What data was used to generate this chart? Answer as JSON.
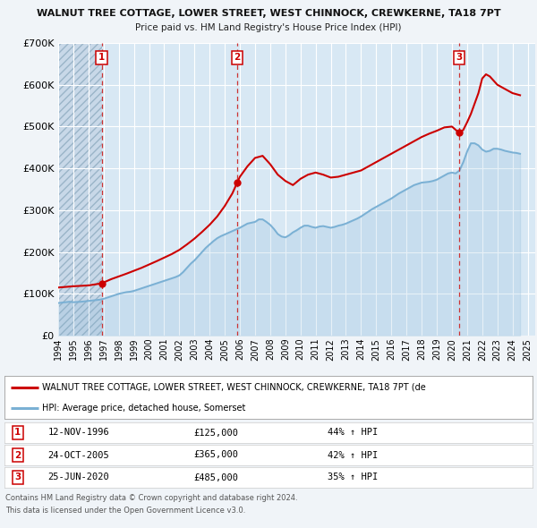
{
  "title_line1": "WALNUT TREE COTTAGE, LOWER STREET, WEST CHINNOCK, CREWKERNE, TA18 7PT",
  "title_line2": "Price paid vs. HM Land Registry's House Price Index (HPI)",
  "bg_color": "#f0f4f8",
  "plot_bg_color": "#d8e8f4",
  "grid_color": "#ffffff",
  "hatch_bg_color": "#c8d8e8",
  "red_line_color": "#cc0000",
  "blue_line_color": "#7ab0d4",
  "sale_marker_color": "#cc0000",
  "xmin": 1994.0,
  "xmax": 2025.5,
  "ymin": 0,
  "ymax": 700000,
  "yticks": [
    0,
    100000,
    200000,
    300000,
    400000,
    500000,
    600000,
    700000
  ],
  "ytick_labels": [
    "£0",
    "£100K",
    "£200K",
    "£300K",
    "£400K",
    "£500K",
    "£600K",
    "£700K"
  ],
  "xtick_years": [
    1994,
    1995,
    1996,
    1997,
    1998,
    1999,
    2000,
    2001,
    2002,
    2003,
    2004,
    2005,
    2006,
    2007,
    2008,
    2009,
    2010,
    2011,
    2012,
    2013,
    2014,
    2015,
    2016,
    2017,
    2018,
    2019,
    2020,
    2021,
    2022,
    2023,
    2024,
    2025
  ],
  "sales": [
    {
      "num": 1,
      "date": "12-NOV-1996",
      "year": 1996.87,
      "price": 125000,
      "pct": "44%",
      "direction": "↑"
    },
    {
      "num": 2,
      "date": "24-OCT-2005",
      "year": 2005.81,
      "price": 365000,
      "pct": "42%",
      "direction": "↑"
    },
    {
      "num": 3,
      "date": "25-JUN-2020",
      "year": 2020.48,
      "price": 485000,
      "pct": "35%",
      "direction": "↑"
    }
  ],
  "legend_label_red": "WALNUT TREE COTTAGE, LOWER STREET, WEST CHINNOCK, CREWKERNE, TA18 7PT (de",
  "legend_label_blue": "HPI: Average price, detached house, Somerset",
  "footer_line1": "Contains HM Land Registry data © Crown copyright and database right 2024.",
  "footer_line2": "This data is licensed under the Open Government Licence v3.0.",
  "hpi_data": {
    "years": [
      1994.0,
      1994.25,
      1994.5,
      1994.75,
      1995.0,
      1995.25,
      1995.5,
      1995.75,
      1996.0,
      1996.25,
      1996.5,
      1996.75,
      1997.0,
      1997.25,
      1997.5,
      1997.75,
      1998.0,
      1998.25,
      1998.5,
      1998.75,
      1999.0,
      1999.25,
      1999.5,
      1999.75,
      2000.0,
      2000.25,
      2000.5,
      2000.75,
      2001.0,
      2001.25,
      2001.5,
      2001.75,
      2002.0,
      2002.25,
      2002.5,
      2002.75,
      2003.0,
      2003.25,
      2003.5,
      2003.75,
      2004.0,
      2004.25,
      2004.5,
      2004.75,
      2005.0,
      2005.25,
      2005.5,
      2005.75,
      2006.0,
      2006.25,
      2006.5,
      2006.75,
      2007.0,
      2007.25,
      2007.5,
      2007.75,
      2008.0,
      2008.25,
      2008.5,
      2008.75,
      2009.0,
      2009.25,
      2009.5,
      2009.75,
      2010.0,
      2010.25,
      2010.5,
      2010.75,
      2011.0,
      2011.25,
      2011.5,
      2011.75,
      2012.0,
      2012.25,
      2012.5,
      2012.75,
      2013.0,
      2013.25,
      2013.5,
      2013.75,
      2014.0,
      2014.25,
      2014.5,
      2014.75,
      2015.0,
      2015.25,
      2015.5,
      2015.75,
      2016.0,
      2016.25,
      2016.5,
      2016.75,
      2017.0,
      2017.25,
      2017.5,
      2017.75,
      2018.0,
      2018.25,
      2018.5,
      2018.75,
      2019.0,
      2019.25,
      2019.5,
      2019.75,
      2020.0,
      2020.25,
      2020.5,
      2020.75,
      2021.0,
      2021.25,
      2021.5,
      2021.75,
      2022.0,
      2022.25,
      2022.5,
      2022.75,
      2023.0,
      2023.25,
      2023.5,
      2023.75,
      2024.0,
      2024.25,
      2024.5
    ],
    "values": [
      78000,
      79000,
      80000,
      81000,
      80000,
      80500,
      81000,
      82000,
      83000,
      84000,
      85000,
      86000,
      88000,
      91000,
      94000,
      97000,
      100000,
      102000,
      104000,
      105000,
      107000,
      110000,
      113000,
      116000,
      119000,
      122000,
      125000,
      128000,
      131000,
      134000,
      137000,
      140000,
      144000,
      152000,
      162000,
      172000,
      180000,
      190000,
      200000,
      210000,
      218000,
      226000,
      233000,
      238000,
      242000,
      246000,
      250000,
      254000,
      258000,
      263000,
      268000,
      270000,
      272000,
      278000,
      278000,
      272000,
      265000,
      255000,
      243000,
      237000,
      235000,
      240000,
      247000,
      252000,
      258000,
      263000,
      263000,
      260000,
      258000,
      261000,
      262000,
      260000,
      258000,
      260000,
      263000,
      265000,
      268000,
      272000,
      276000,
      280000,
      285000,
      291000,
      297000,
      303000,
      308000,
      313000,
      318000,
      323000,
      328000,
      334000,
      340000,
      345000,
      350000,
      355000,
      360000,
      363000,
      366000,
      367000,
      368000,
      370000,
      373000,
      378000,
      383000,
      388000,
      390000,
      388000,
      395000,
      415000,
      440000,
      460000,
      460000,
      455000,
      445000,
      440000,
      442000,
      447000,
      447000,
      445000,
      442000,
      440000,
      438000,
      437000,
      435000
    ]
  },
  "property_line_data": {
    "years": [
      1994.0,
      1995.0,
      1996.0,
      1996.87,
      1997.5,
      1998.5,
      1999.5,
      2000.5,
      2001.5,
      2002.0,
      2002.5,
      2003.0,
      2003.5,
      2004.0,
      2004.5,
      2005.0,
      2005.5,
      2005.81,
      2006.0,
      2006.5,
      2007.0,
      2007.5,
      2008.0,
      2008.5,
      2009.0,
      2009.5,
      2010.0,
      2010.5,
      2011.0,
      2011.5,
      2012.0,
      2012.5,
      2013.0,
      2013.5,
      2014.0,
      2014.5,
      2015.0,
      2015.5,
      2016.0,
      2016.5,
      2017.0,
      2017.5,
      2018.0,
      2018.5,
      2019.0,
      2019.5,
      2020.0,
      2020.48,
      2020.75,
      2021.0,
      2021.25,
      2021.5,
      2021.75,
      2022.0,
      2022.25,
      2022.5,
      2022.75,
      2023.0,
      2023.5,
      2024.0,
      2024.5
    ],
    "values": [
      115000,
      118000,
      120000,
      125000,
      135000,
      148000,
      162000,
      178000,
      195000,
      205000,
      218000,
      232000,
      248000,
      265000,
      285000,
      310000,
      340000,
      365000,
      380000,
      405000,
      425000,
      430000,
      410000,
      385000,
      370000,
      360000,
      375000,
      385000,
      390000,
      385000,
      378000,
      380000,
      385000,
      390000,
      395000,
      405000,
      415000,
      425000,
      435000,
      445000,
      455000,
      465000,
      475000,
      483000,
      490000,
      498000,
      500000,
      485000,
      492000,
      510000,
      530000,
      555000,
      580000,
      615000,
      625000,
      620000,
      610000,
      600000,
      590000,
      580000,
      575000
    ]
  }
}
